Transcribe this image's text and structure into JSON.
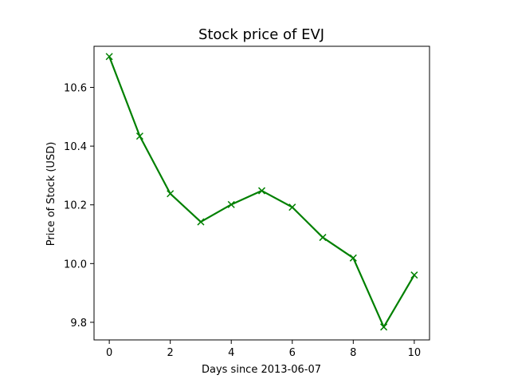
{
  "chart_data": {
    "type": "line",
    "title": "Stock price of EVJ",
    "xlabel": "Days since 2013-06-07",
    "ylabel": "Price of Stock (USD)",
    "xlim": [
      -0.5,
      10.5
    ],
    "ylim": [
      9.74,
      10.74
    ],
    "x_ticks": [
      0,
      2,
      4,
      6,
      8,
      10
    ],
    "y_ticks": [
      9.8,
      10.0,
      10.2,
      10.4,
      10.6
    ],
    "grid": false,
    "legend": "none",
    "x": [
      0,
      1,
      2,
      3,
      4,
      5,
      6,
      7,
      8,
      9,
      10
    ],
    "series": [
      {
        "color": "#008000",
        "marker": "x",
        "values": [
          10.705,
          10.434,
          10.238,
          10.142,
          10.201,
          10.248,
          10.192,
          10.089,
          10.019,
          9.784,
          9.961
        ]
      }
    ]
  }
}
